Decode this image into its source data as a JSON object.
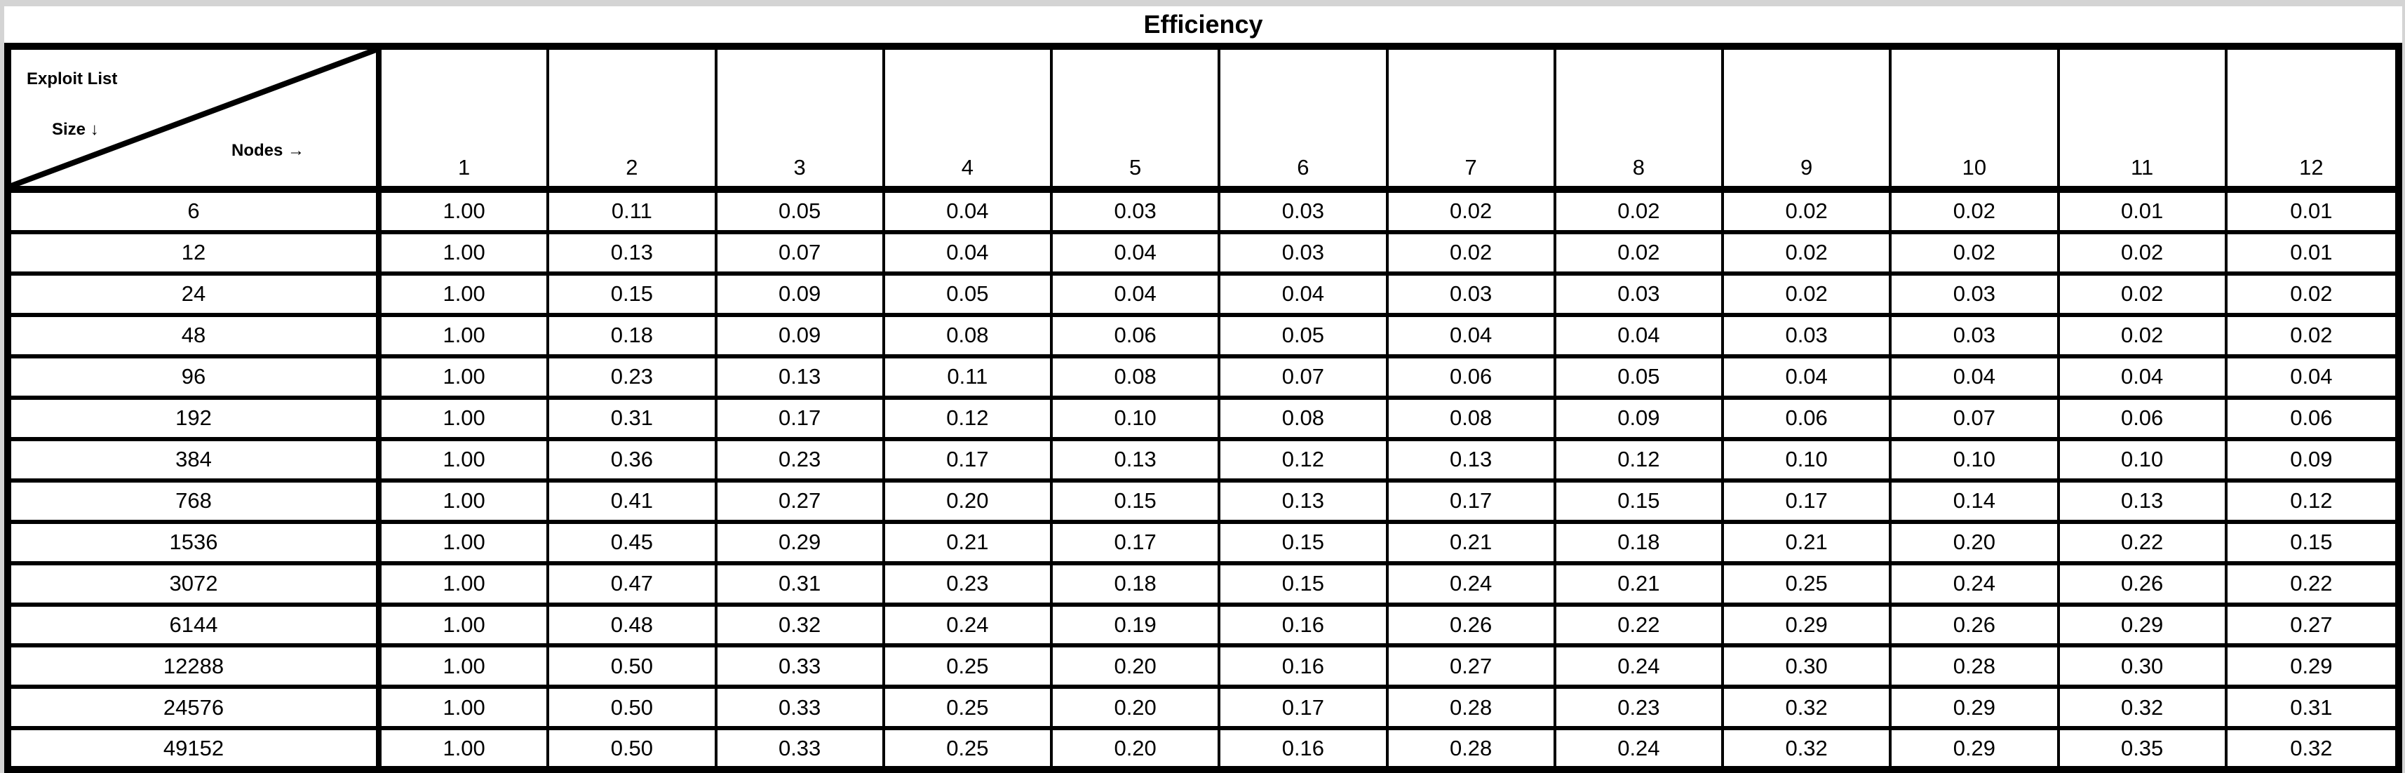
{
  "title": "Efficiency",
  "corner": {
    "top_label": "Exploit List",
    "side_label": "Size ↓",
    "nodes_label": "Nodes →"
  },
  "columns": [
    "1",
    "2",
    "3",
    "4",
    "5",
    "6",
    "7",
    "8",
    "9",
    "10",
    "11",
    "12"
  ],
  "rows": [
    {
      "size": "6",
      "values": [
        "1.00",
        "0.11",
        "0.05",
        "0.04",
        "0.03",
        "0.03",
        "0.02",
        "0.02",
        "0.02",
        "0.02",
        "0.01",
        "0.01"
      ]
    },
    {
      "size": "12",
      "values": [
        "1.00",
        "0.13",
        "0.07",
        "0.04",
        "0.04",
        "0.03",
        "0.02",
        "0.02",
        "0.02",
        "0.02",
        "0.02",
        "0.01"
      ]
    },
    {
      "size": "24",
      "values": [
        "1.00",
        "0.15",
        "0.09",
        "0.05",
        "0.04",
        "0.04",
        "0.03",
        "0.03",
        "0.02",
        "0.03",
        "0.02",
        "0.02"
      ]
    },
    {
      "size": "48",
      "values": [
        "1.00",
        "0.18",
        "0.09",
        "0.08",
        "0.06",
        "0.05",
        "0.04",
        "0.04",
        "0.03",
        "0.03",
        "0.02",
        "0.02"
      ]
    },
    {
      "size": "96",
      "values": [
        "1.00",
        "0.23",
        "0.13",
        "0.11",
        "0.08",
        "0.07",
        "0.06",
        "0.05",
        "0.04",
        "0.04",
        "0.04",
        "0.04"
      ]
    },
    {
      "size": "192",
      "values": [
        "1.00",
        "0.31",
        "0.17",
        "0.12",
        "0.10",
        "0.08",
        "0.08",
        "0.09",
        "0.06",
        "0.07",
        "0.06",
        "0.06"
      ]
    },
    {
      "size": "384",
      "values": [
        "1.00",
        "0.36",
        "0.23",
        "0.17",
        "0.13",
        "0.12",
        "0.13",
        "0.12",
        "0.10",
        "0.10",
        "0.10",
        "0.09"
      ]
    },
    {
      "size": "768",
      "values": [
        "1.00",
        "0.41",
        "0.27",
        "0.20",
        "0.15",
        "0.13",
        "0.17",
        "0.15",
        "0.17",
        "0.14",
        "0.13",
        "0.12"
      ]
    },
    {
      "size": "1536",
      "values": [
        "1.00",
        "0.45",
        "0.29",
        "0.21",
        "0.17",
        "0.15",
        "0.21",
        "0.18",
        "0.21",
        "0.20",
        "0.22",
        "0.15"
      ]
    },
    {
      "size": "3072",
      "values": [
        "1.00",
        "0.47",
        "0.31",
        "0.23",
        "0.18",
        "0.15",
        "0.24",
        "0.21",
        "0.25",
        "0.24",
        "0.26",
        "0.22"
      ]
    },
    {
      "size": "6144",
      "values": [
        "1.00",
        "0.48",
        "0.32",
        "0.24",
        "0.19",
        "0.16",
        "0.26",
        "0.22",
        "0.29",
        "0.26",
        "0.29",
        "0.27"
      ]
    },
    {
      "size": "12288",
      "values": [
        "1.00",
        "0.50",
        "0.33",
        "0.25",
        "0.20",
        "0.16",
        "0.27",
        "0.24",
        "0.30",
        "0.28",
        "0.30",
        "0.29"
      ]
    },
    {
      "size": "24576",
      "values": [
        "1.00",
        "0.50",
        "0.33",
        "0.25",
        "0.20",
        "0.17",
        "0.28",
        "0.23",
        "0.32",
        "0.29",
        "0.32",
        "0.31"
      ]
    },
    {
      "size": "49152",
      "values": [
        "1.00",
        "0.50",
        "0.33",
        "0.25",
        "0.20",
        "0.16",
        "0.28",
        "0.24",
        "0.32",
        "0.29",
        "0.35",
        "0.32"
      ]
    }
  ],
  "colors": {
    "border": "#000000",
    "background": "#ffffff",
    "page_edge": "#d4d4d4",
    "text": "#000000"
  },
  "chart_data": {
    "type": "table",
    "title": "Efficiency",
    "xlabel": "Nodes",
    "ylabel": "Exploit List Size",
    "columns": [
      1,
      2,
      3,
      4,
      5,
      6,
      7,
      8,
      9,
      10,
      11,
      12
    ],
    "row_labels": [
      6,
      12,
      24,
      48,
      96,
      192,
      384,
      768,
      1536,
      3072,
      6144,
      12288,
      24576,
      49152
    ],
    "values": [
      [
        1.0,
        0.11,
        0.05,
        0.04,
        0.03,
        0.03,
        0.02,
        0.02,
        0.02,
        0.02,
        0.01,
        0.01
      ],
      [
        1.0,
        0.13,
        0.07,
        0.04,
        0.04,
        0.03,
        0.02,
        0.02,
        0.02,
        0.02,
        0.02,
        0.01
      ],
      [
        1.0,
        0.15,
        0.09,
        0.05,
        0.04,
        0.04,
        0.03,
        0.03,
        0.02,
        0.03,
        0.02,
        0.02
      ],
      [
        1.0,
        0.18,
        0.09,
        0.08,
        0.06,
        0.05,
        0.04,
        0.04,
        0.03,
        0.03,
        0.02,
        0.02
      ],
      [
        1.0,
        0.23,
        0.13,
        0.11,
        0.08,
        0.07,
        0.06,
        0.05,
        0.04,
        0.04,
        0.04,
        0.04
      ],
      [
        1.0,
        0.31,
        0.17,
        0.12,
        0.1,
        0.08,
        0.08,
        0.09,
        0.06,
        0.07,
        0.06,
        0.06
      ],
      [
        1.0,
        0.36,
        0.23,
        0.17,
        0.13,
        0.12,
        0.13,
        0.12,
        0.1,
        0.1,
        0.1,
        0.09
      ],
      [
        1.0,
        0.41,
        0.27,
        0.2,
        0.15,
        0.13,
        0.17,
        0.15,
        0.17,
        0.14,
        0.13,
        0.12
      ],
      [
        1.0,
        0.45,
        0.29,
        0.21,
        0.17,
        0.15,
        0.21,
        0.18,
        0.21,
        0.2,
        0.22,
        0.15
      ],
      [
        1.0,
        0.47,
        0.31,
        0.23,
        0.18,
        0.15,
        0.24,
        0.21,
        0.25,
        0.24,
        0.26,
        0.22
      ],
      [
        1.0,
        0.48,
        0.32,
        0.24,
        0.19,
        0.16,
        0.26,
        0.22,
        0.29,
        0.26,
        0.29,
        0.27
      ],
      [
        1.0,
        0.5,
        0.33,
        0.25,
        0.2,
        0.16,
        0.27,
        0.24,
        0.3,
        0.28,
        0.3,
        0.29
      ],
      [
        1.0,
        0.5,
        0.33,
        0.25,
        0.2,
        0.17,
        0.28,
        0.23,
        0.32,
        0.29,
        0.32,
        0.31
      ],
      [
        1.0,
        0.5,
        0.33,
        0.25,
        0.2,
        0.16,
        0.28,
        0.24,
        0.32,
        0.29,
        0.35,
        0.32
      ]
    ]
  }
}
